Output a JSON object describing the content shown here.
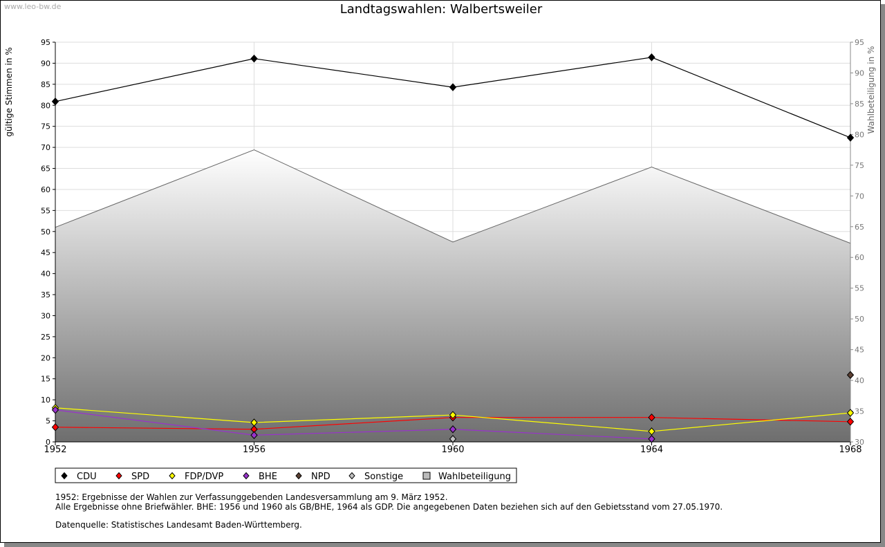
{
  "watermark": "www.leo-bw.de",
  "chart_data": {
    "type": "line",
    "title": "Landtagswahlen: Walbertsweiler",
    "ylabel": "gültige Stimmen in %",
    "y2label": "Wahlbeteiligung in %",
    "x": [
      "1952",
      "1956",
      "1960",
      "1964",
      "1968"
    ],
    "ylim": [
      0,
      95
    ],
    "y2lim": [
      30,
      95
    ],
    "yticks": [
      0,
      5,
      10,
      15,
      20,
      25,
      30,
      35,
      40,
      45,
      50,
      55,
      60,
      65,
      70,
      75,
      80,
      85,
      90,
      95
    ],
    "y2ticks": [
      30,
      35,
      40,
      45,
      50,
      55,
      60,
      65,
      70,
      75,
      80,
      85,
      90,
      95
    ],
    "grid": true,
    "legend_position": "bottom-left",
    "series": [
      {
        "name": "CDU",
        "color": "#000000",
        "values": [
          80.9,
          91.1,
          84.3,
          91.4,
          72.3
        ]
      },
      {
        "name": "SPD",
        "color": "#ff0000",
        "values": [
          3.5,
          3.0,
          5.8,
          5.8,
          4.8
        ]
      },
      {
        "name": "FDP/DVP",
        "color": "#ffff00",
        "values": [
          8.1,
          4.6,
          6.4,
          2.5,
          6.9
        ]
      },
      {
        "name": "BHE",
        "color": "#9932cc",
        "values": [
          7.6,
          1.6,
          3.0,
          0.7,
          null
        ]
      },
      {
        "name": "NPD",
        "color": "#5c4033",
        "values": [
          null,
          null,
          null,
          null,
          15.9
        ]
      },
      {
        "name": "Sonstige",
        "color": "#c0c0c0",
        "values": [
          null,
          null,
          0.7,
          null,
          null
        ]
      }
    ],
    "area_series": {
      "name": "Wahlbeteiligung",
      "axis": "right",
      "values": [
        64.9,
        77.5,
        62.5,
        74.7,
        62.3
      ]
    }
  },
  "notes": [
    "1952: Ergebnisse der Wahlen zur Verfassunggebenden Landesversammlung am 9. März 1952.",
    "Alle Ergebnisse ohne Briefwähler. BHE: 1956 und 1960 als GB/BHE, 1964 als GDP. Die angegebenen Daten beziehen sich auf den Gebietsstand vom 27.05.1970.",
    "Datenquelle: Statistisches Landesamt Baden-Württemberg."
  ]
}
